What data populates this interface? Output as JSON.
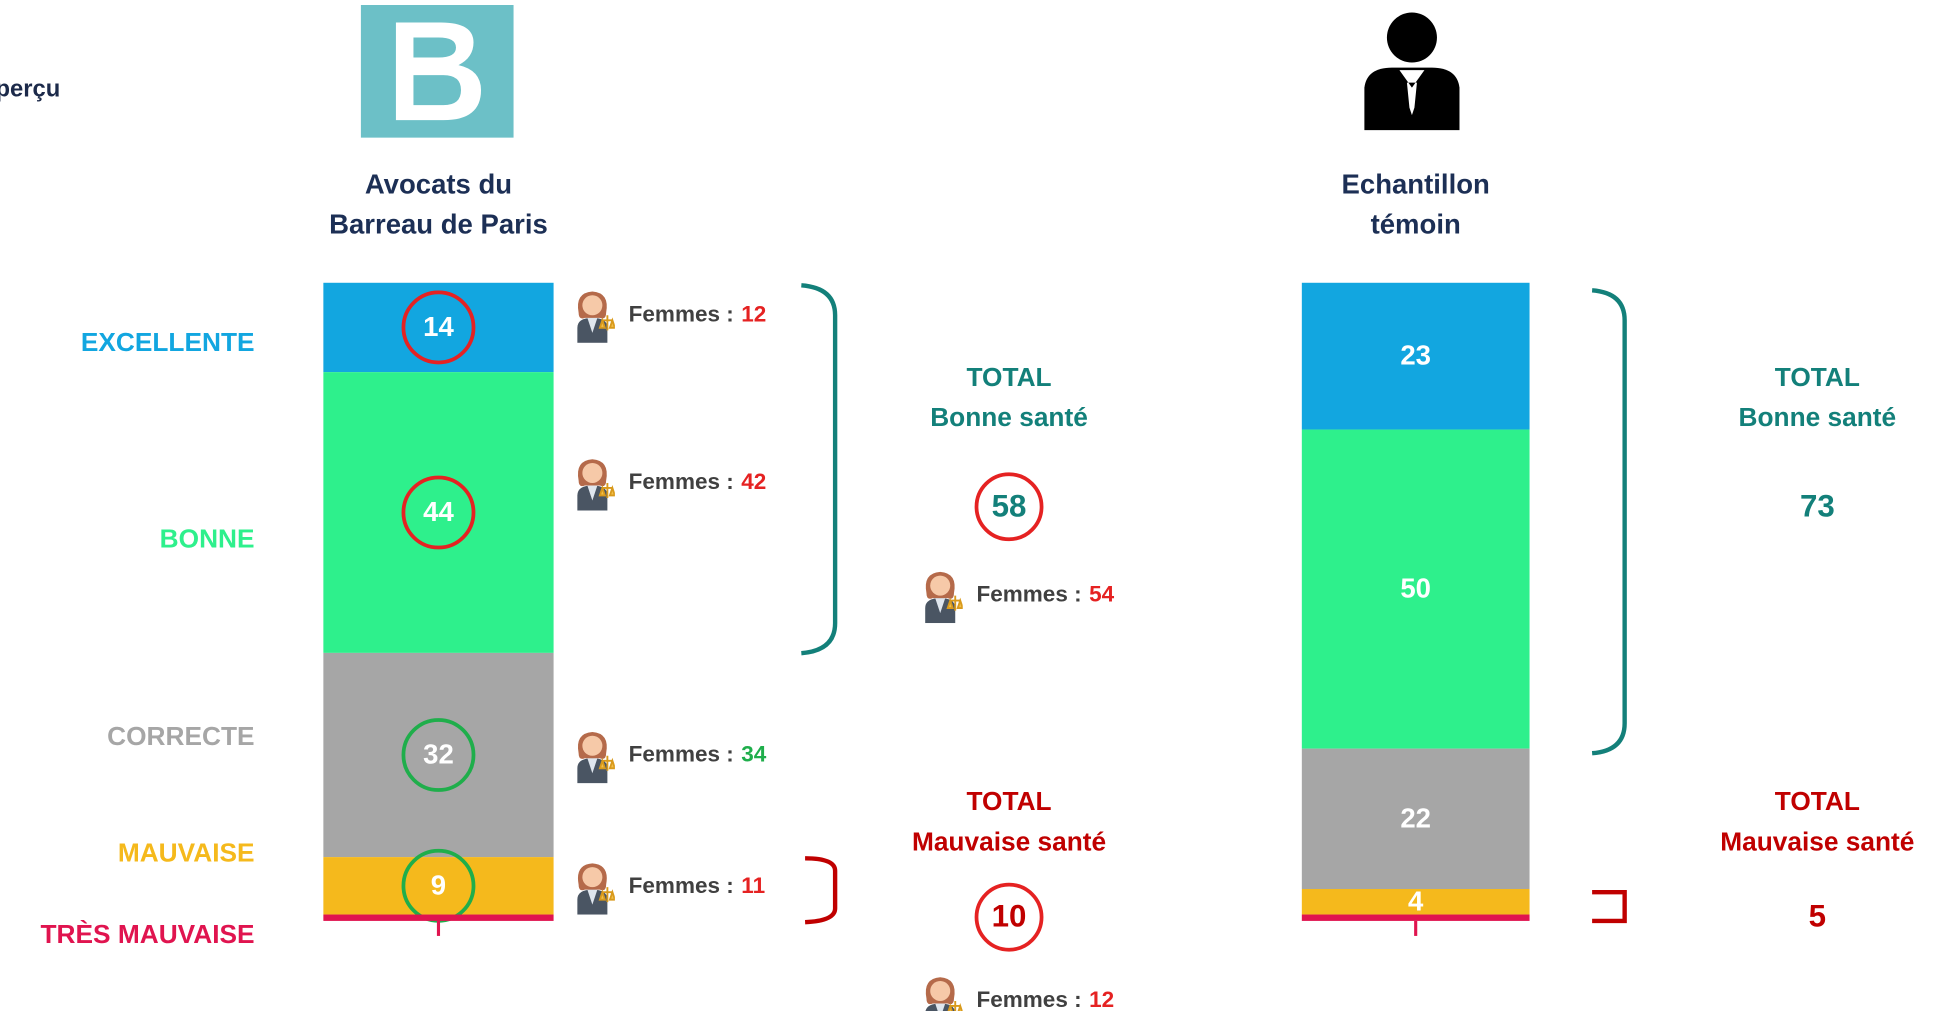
{
  "chart_data": {
    "type": "stacked_bar",
    "title": "perçu",
    "categories": [
      [
        "Avocats du",
        "Barreau de Paris"
      ],
      [
        "Echantillon",
        "témoin"
      ]
    ],
    "ylim": [
      0,
      100
    ],
    "series": [
      {
        "name": "EXCELLENTE",
        "color": "#12a6e0",
        "values": [
          14,
          23
        ]
      },
      {
        "name": "BONNE",
        "color": "#2ef08c",
        "values": [
          44,
          50
        ]
      },
      {
        "name": "CORRECTE",
        "color": "#a6a6a6",
        "values": [
          32,
          22
        ]
      },
      {
        "name": "MAUVAISE",
        "color": "#f5b91c",
        "values": [
          9,
          4
        ]
      },
      {
        "name": "TRÈS MAUVAISE",
        "color": "#e0144f",
        "values": [
          1,
          1
        ]
      }
    ],
    "highlight_colors": [
      "#e52222",
      "#e52222",
      "#1fae4b",
      "#1fae4b"
    ],
    "femmes": {
      "label": "Femmes :",
      "values": [
        12,
        42,
        34,
        11
      ],
      "colors": [
        "#e52222",
        "#e52222",
        "#1fae4b",
        "#e52222"
      ]
    },
    "totals": {
      "good": {
        "label": [
          "TOTAL",
          "Bonne santé"
        ],
        "color": "#13807a",
        "values": [
          58,
          73
        ],
        "femmes": 54
      },
      "bad": {
        "label": [
          "TOTAL",
          "Mauvaise santé"
        ],
        "color": "#c00000",
        "values": [
          10,
          5
        ],
        "femmes": 12
      }
    }
  }
}
